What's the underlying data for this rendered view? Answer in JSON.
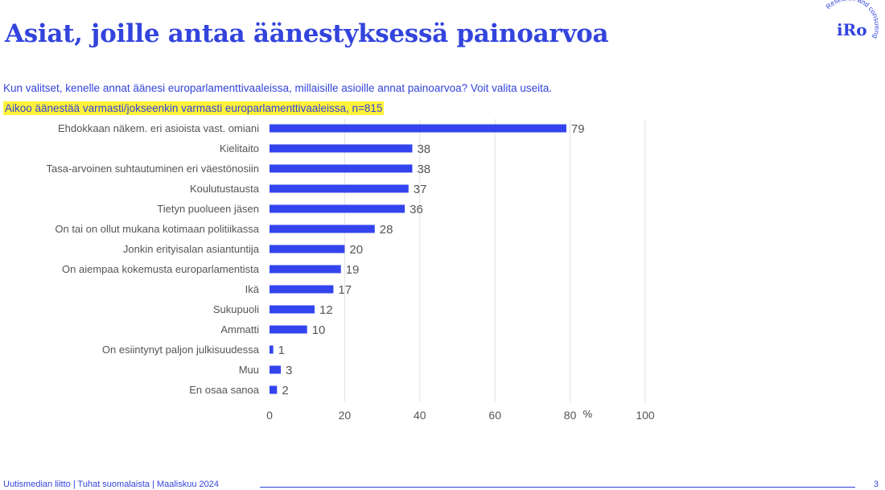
{
  "header": {
    "title": "Asiat, joille antaa äänestyksessä painoarvoa",
    "question": "Kun valitset, kenelle annat äänesi europarlamenttivaaleissa, millaisille asioille annat painoarvoa? Voit valita useita.",
    "base": "Aikoo äänestää varmasti/jokseenkin varmasti europarlamenttivaaleissa, n=815"
  },
  "logo": {
    "text": "iRo",
    "tagline": "Research and consulting"
  },
  "footer": {
    "source": "Uutismedian liitto | Tuhat suomalaista | Maaliskuu 2024",
    "page": "3"
  },
  "colors": {
    "accent": "#3344dd",
    "highlight": "#fff23a",
    "bar": "#3344ee"
  },
  "chart_data": {
    "type": "bar",
    "orientation": "horizontal",
    "categories": [
      "Ehdokkaan näkem. eri asioista vast. omiani",
      "Kielitaito",
      "Tasa-arvoinen suhtautuminen eri väestönosiin",
      "Koulutustausta",
      "Tietyn puolueen jäsen",
      "On tai on ollut mukana kotimaan politiikassa",
      "Jonkin erityisalan asiantuntija",
      "On aiempaa kokemusta europarlamentista",
      "Ikä",
      "Sukupuoli",
      "Ammatti",
      "On esiintynyt paljon julkisuudessa",
      "Muu",
      "En osaa sanoa"
    ],
    "values": [
      79,
      38,
      38,
      37,
      36,
      28,
      20,
      19,
      17,
      12,
      10,
      1,
      3,
      2
    ],
    "xlim": [
      0,
      100
    ],
    "xticks": [
      0,
      20,
      40,
      60,
      80,
      100
    ],
    "unit": "%",
    "grid": true
  }
}
